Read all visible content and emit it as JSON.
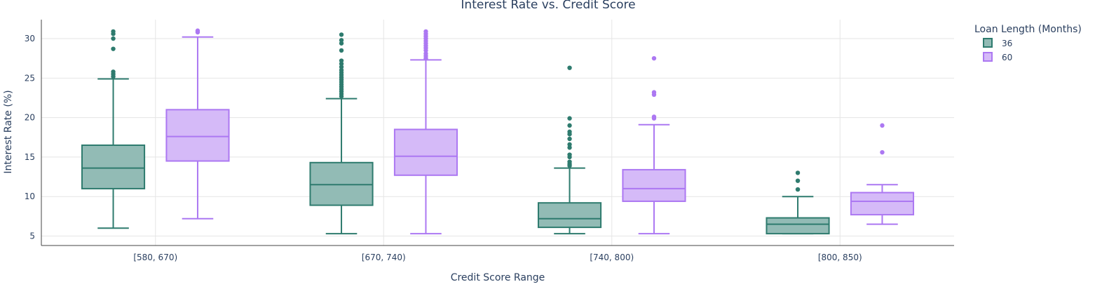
{
  "chart_data": {
    "type": "box",
    "title": "Interest Rate vs. Credit Score",
    "xlabel": "Credit Score Range",
    "ylabel": "Interest Rate (%)",
    "categories": [
      "[580, 670)",
      "[670, 740)",
      "[740, 800)",
      "[800, 850)"
    ],
    "ylim": [
      3.8,
      32.4
    ],
    "yticks": [
      5,
      10,
      15,
      20,
      25,
      30
    ],
    "grid": true,
    "legend": {
      "title": "Loan Length (Months)",
      "position": "top-right"
    },
    "series": [
      {
        "name": "36",
        "color": "#2e7b6e",
        "fill": "#92bbb5",
        "boxes": [
          {
            "min": 6.0,
            "q1": 11.0,
            "median": 13.6,
            "q3": 16.5,
            "max": 24.9,
            "outliers": [
              25.2,
              25.5,
              25.8,
              28.7,
              30.0,
              30.6,
              30.9
            ]
          },
          {
            "min": 5.3,
            "q1": 8.9,
            "median": 11.5,
            "q3": 14.3,
            "max": 22.4,
            "outliers": [
              22.7,
              23.0,
              23.3,
              23.6,
              23.9,
              24.2,
              24.5,
              24.8,
              25.1,
              25.4,
              25.7,
              26.0,
              26.4,
              26.8,
              27.2,
              28.5,
              29.4,
              29.8,
              30.5
            ]
          },
          {
            "min": 5.3,
            "q1": 6.1,
            "median": 7.2,
            "q3": 9.2,
            "max": 13.6,
            "outliers": [
              13.9,
              14.1,
              14.4,
              15.0,
              15.3,
              16.2,
              16.6,
              17.3,
              17.9,
              18.2,
              19.0,
              19.9,
              26.3
            ]
          },
          {
            "min": 5.3,
            "q1": 5.3,
            "median": 6.5,
            "q3": 7.3,
            "max": 10.0,
            "outliers": [
              10.9,
              12.0,
              13.0
            ]
          }
        ]
      },
      {
        "name": "60",
        "color": "#ac78f2",
        "fill": "#d5baf8",
        "boxes": [
          {
            "min": 7.2,
            "q1": 14.5,
            "median": 17.6,
            "q3": 21.0,
            "max": 30.2,
            "outliers": [
              30.8,
              31.0
            ]
          },
          {
            "min": 5.3,
            "q1": 12.7,
            "median": 15.1,
            "q3": 18.5,
            "max": 27.3,
            "outliers": [
              27.5,
              27.8,
              28.1,
              28.5,
              28.8,
              29.1,
              29.4,
              29.7,
              30.0,
              30.3,
              30.6,
              30.9
            ]
          },
          {
            "min": 5.3,
            "q1": 9.4,
            "median": 11.0,
            "q3": 13.4,
            "max": 19.1,
            "outliers": [
              19.9,
              20.1,
              22.9,
              23.2,
              27.5
            ]
          },
          {
            "min": 6.5,
            "q1": 7.7,
            "median": 9.4,
            "q3": 10.5,
            "max": 11.5,
            "outliers": [
              15.6,
              19.0
            ]
          }
        ]
      }
    ]
  }
}
